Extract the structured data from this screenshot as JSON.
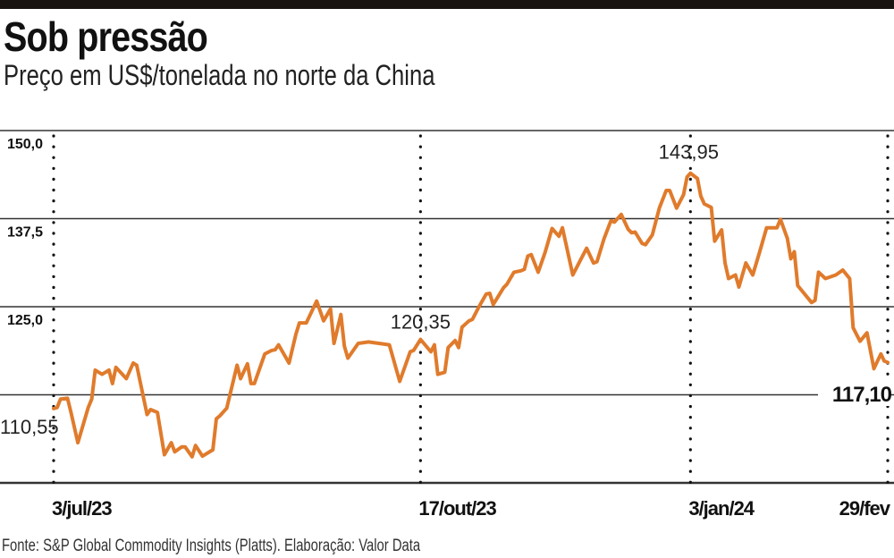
{
  "header": {
    "title": "Sob pressão",
    "subtitle": "Preço em US$/tonelada no norte da China"
  },
  "footer": {
    "source": "Fonte: S&P Global Commodity Insights (Platts). Elaboração: Valor Data"
  },
  "colors": {
    "line": "#e07b2c",
    "grid": "#333333",
    "text": "#111111"
  },
  "chart_data": {
    "type": "line",
    "title": "Sob pressão",
    "subtitle": "Preço em US$/tonelada no norte da China",
    "xlabel": "",
    "ylabel": "US$/tonelada",
    "x_unit": "days since 3/jul/23",
    "xlim": [
      0,
      241
    ],
    "ylim": [
      100,
      150
    ],
    "grid": true,
    "y_ticks": [
      {
        "value": 150,
        "label": "150,0"
      },
      {
        "value": 137.5,
        "label": "137,5"
      },
      {
        "value": 125,
        "label": "125,0"
      },
      {
        "value": 112.5,
        "label": ""
      },
      {
        "value": 100,
        "label": ""
      }
    ],
    "x_ticks": [
      {
        "day": 0,
        "label": "3/jul/23"
      },
      {
        "day": 106,
        "label": "17/out/23"
      },
      {
        "day": 184,
        "label": "3/jan/24"
      },
      {
        "day": 241,
        "label": "29/fev"
      }
    ],
    "annotations": [
      {
        "day": 0,
        "value": 110.55,
        "label": "110,55"
      },
      {
        "day": 106,
        "value": 120.35,
        "label": "120,35"
      },
      {
        "day": 184,
        "value": 143.95,
        "label": "143,95"
      },
      {
        "day": 241,
        "value": 117.1,
        "label": "117,10"
      }
    ],
    "series": [
      {
        "name": "Preço",
        "x": [
          0,
          1,
          2,
          4,
          5,
          7,
          10,
          11,
          12,
          14,
          16,
          17,
          18,
          21,
          23,
          24,
          27,
          28,
          30,
          32,
          34,
          35,
          37,
          38,
          40,
          41,
          43,
          46,
          47,
          48,
          50,
          53,
          54,
          56,
          57,
          58,
          61,
          63,
          64,
          65,
          68,
          70,
          71,
          73,
          76,
          78,
          80,
          81,
          83,
          84,
          85,
          88,
          91,
          94,
          97,
          100,
          103,
          104,
          106,
          109,
          110,
          111,
          113,
          114,
          116,
          117,
          118,
          120,
          121,
          123,
          125,
          126,
          127,
          130,
          131,
          133,
          135,
          136,
          137,
          138,
          140,
          142,
          144,
          146,
          147,
          150,
          152,
          154,
          156,
          157,
          159,
          161,
          162,
          164,
          166,
          167,
          168,
          170,
          171,
          173,
          175,
          177,
          178,
          180,
          182,
          183,
          184,
          186,
          187,
          188,
          190,
          191,
          193,
          194,
          195,
          197,
          198,
          200,
          202,
          204,
          206,
          209,
          210,
          212,
          213,
          214,
          215,
          219,
          220,
          221,
          223,
          226,
          228,
          230,
          231,
          233,
          235,
          237,
          239,
          240,
          241
        ],
        "values": [
          110.55,
          110.7,
          111.9,
          112.0,
          110.0,
          105.7,
          110.7,
          111.9,
          116.0,
          115.4,
          116.0,
          114.1,
          116.4,
          114.8,
          117.0,
          116.7,
          109.7,
          110.4,
          110.0,
          104.0,
          105.7,
          104.4,
          105.1,
          105.1,
          103.7,
          105.3,
          103.8,
          104.7,
          109.1,
          109.5,
          110.6,
          116.7,
          114.8,
          116.9,
          114.1,
          114.1,
          118.3,
          118.8,
          118.9,
          119.6,
          117.0,
          121.1,
          122.7,
          122.7,
          125.8,
          123.0,
          124.7,
          119.8,
          123.9,
          119.4,
          117.7,
          119.8,
          120.0,
          119.8,
          119.6,
          114.4,
          118.6,
          118.8,
          120.35,
          118.6,
          119.6,
          115.4,
          115.7,
          119.2,
          120.2,
          119.2,
          122.1,
          123.0,
          123.2,
          125.1,
          126.8,
          126.9,
          125.3,
          127.7,
          128.2,
          129.9,
          130.1,
          130.3,
          132.2,
          132.4,
          129.9,
          132.7,
          136.1,
          135.0,
          136.2,
          129.5,
          131.4,
          133.3,
          131.2,
          131.4,
          134.6,
          137.2,
          137.0,
          138.1,
          136.0,
          135.5,
          135.6,
          134.0,
          133.8,
          135.2,
          139.0,
          141.5,
          141.5,
          139.0,
          140.9,
          143.4,
          143.95,
          143.2,
          140.7,
          139.6,
          139.1,
          134.3,
          135.9,
          131.2,
          129.0,
          129.5,
          127.8,
          131.2,
          129.5,
          132.8,
          136.2,
          136.2,
          137.4,
          134.7,
          131.8,
          132.8,
          128.0,
          125.6,
          125.9,
          129.9,
          129.0,
          129.5,
          130.2,
          129.0,
          122.0,
          120.1,
          121.3,
          116.2,
          118.3,
          117.3,
          117.1
        ]
      }
    ]
  }
}
